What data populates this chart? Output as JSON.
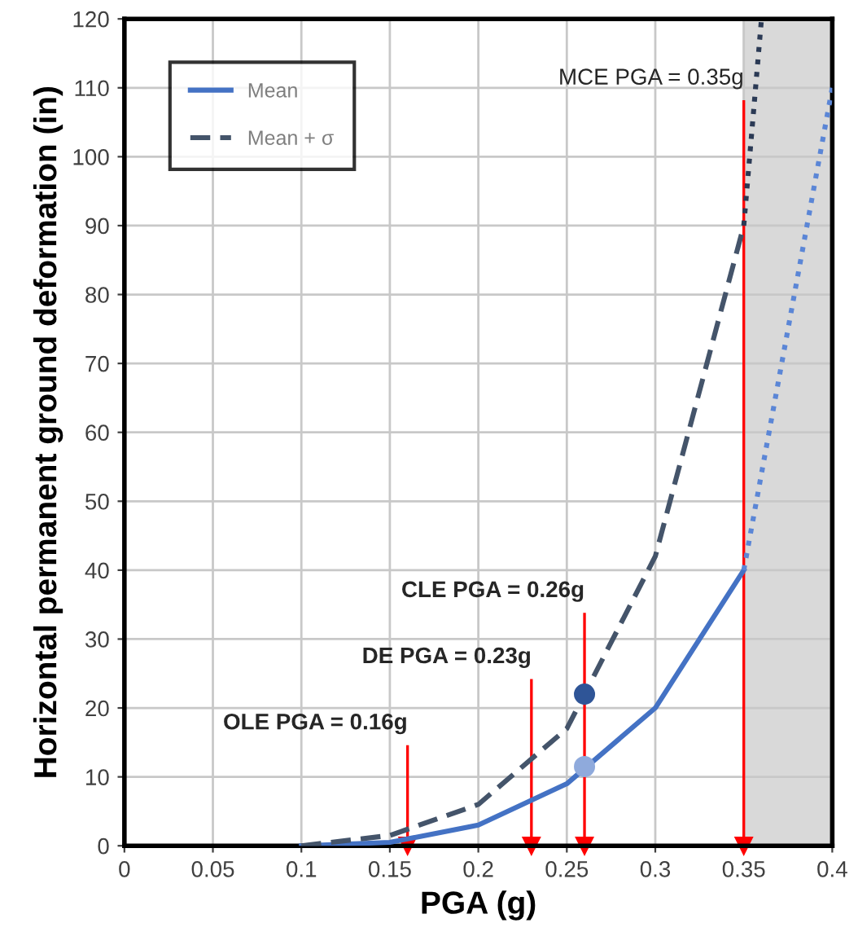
{
  "chart_data": {
    "type": "line",
    "xlabel": "PGA (g)",
    "ylabel": "Horizontal permanent ground deformation (in)",
    "xlim": [
      0,
      0.4
    ],
    "ylim": [
      0,
      120
    ],
    "xticks": [
      0,
      0.05,
      0.1,
      0.15,
      0.2,
      0.25,
      0.3,
      0.35,
      0.4
    ],
    "yticks": [
      0,
      10,
      20,
      30,
      40,
      50,
      60,
      70,
      80,
      90,
      100,
      110,
      120
    ],
    "grid": true,
    "legend": "top left",
    "series": [
      {
        "name": "Mean",
        "color": "#4472c4",
        "line_style": "solid",
        "marker": "none",
        "x": [
          0.1,
          0.15,
          0.2,
          0.25,
          0.3,
          0.35
        ],
        "values": [
          0,
          0.5,
          3,
          9,
          20,
          40
        ]
      },
      {
        "name": "Mean + σ",
        "color": "#44546a",
        "line_style": "dashed",
        "marker": "none",
        "x": [
          0.1,
          0.15,
          0.2,
          0.25,
          0.3,
          0.35
        ],
        "values": [
          0,
          1.5,
          6,
          17,
          42,
          90
        ]
      },
      {
        "color": "#5b86d6",
        "line_style": "dotted",
        "marker": "none",
        "x": [
          0.35,
          0.4
        ],
        "values": [
          40,
          110
        ]
      },
      {
        "color": "#2b3a55",
        "line_style": "dotted",
        "marker": "none",
        "x": [
          0.35,
          0.36
        ],
        "values": [
          90,
          120
        ]
      },
      {
        "type": "scatter",
        "color": "#2f5597",
        "marker": "circle",
        "x": [
          0.26
        ],
        "values": [
          22
        ]
      },
      {
        "type": "scatter",
        "color": "#8faadc",
        "marker": "circle",
        "x": [
          0.26
        ],
        "values": [
          11.5
        ]
      }
    ],
    "ref_lines": [
      {
        "axis": "x",
        "value": 0.16,
        "label": "OLE PGA = 0.16g",
        "color": "#ff0000"
      },
      {
        "axis": "x",
        "value": 0.23,
        "label": "DE PGA = 0.23g",
        "color": "#ff0000"
      },
      {
        "axis": "x",
        "value": 0.26,
        "label": "CLE PGA = 0.26g",
        "color": "#ff0000"
      },
      {
        "axis": "x",
        "value": 0.35,
        "label": "MCE PGA = 0.35g",
        "color": "#ff0000"
      }
    ],
    "bands": [
      {
        "axis": "x",
        "from": 0.35,
        "to": 0.4,
        "color": "#d9d9d9"
      }
    ]
  }
}
